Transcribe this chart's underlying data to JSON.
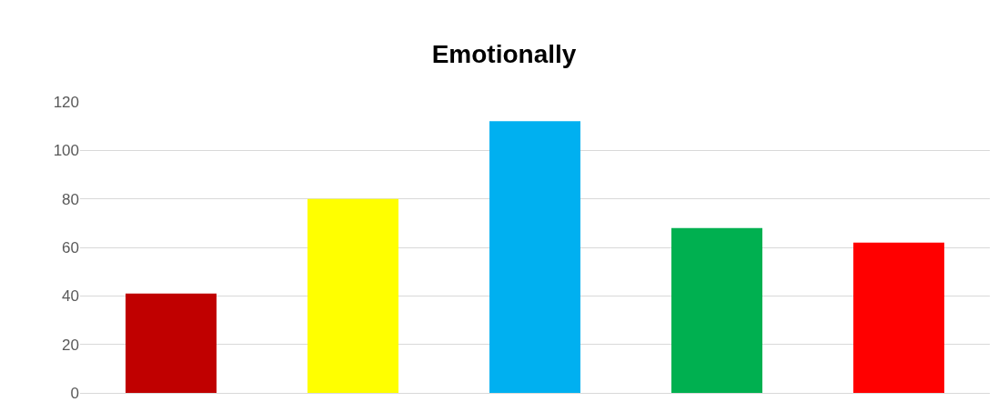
{
  "chart_data": {
    "type": "bar",
    "title": "Emotionally",
    "categories": [
      null,
      null,
      null,
      null,
      null
    ],
    "values": [
      41,
      80,
      112,
      68,
      62
    ],
    "colors": [
      "#c00000",
      "#ffff00",
      "#00b0f0",
      "#00b050",
      "#ff0000"
    ],
    "ylim": [
      0,
      120
    ],
    "yticks": [
      0,
      20,
      40,
      60,
      80,
      100,
      120
    ],
    "grid": "y"
  }
}
